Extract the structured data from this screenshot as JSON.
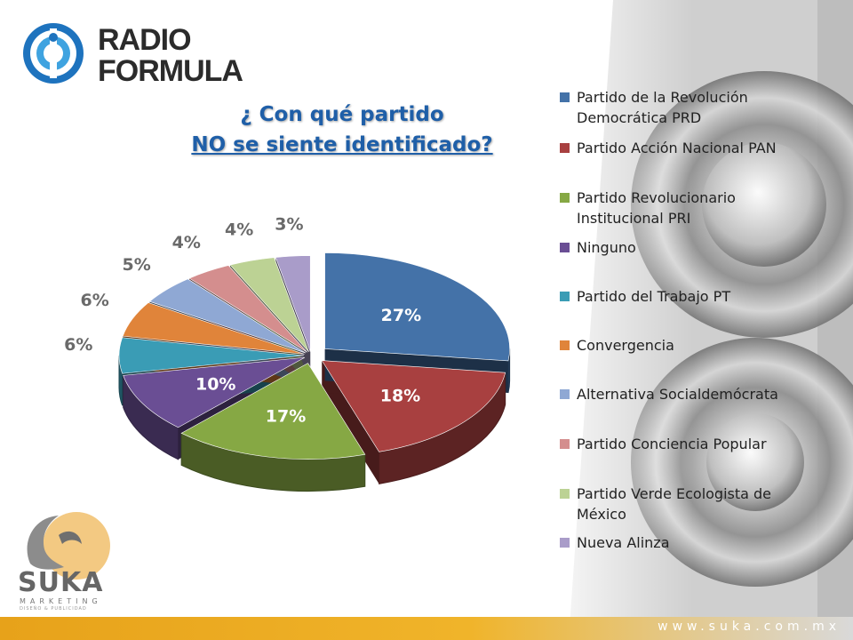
{
  "brand": {
    "logo_line1": "RADIO",
    "logo_line2": "FORMULA",
    "suka_name": "SUKA",
    "suka_sub": "MARKETING",
    "suka_tag": "DISEÑO & PUBLICIDAD",
    "footer_url": "www.suka.com.mx",
    "colors": {
      "footer": "#f0b42a",
      "title": "#1f5fa8"
    }
  },
  "chart_data": {
    "type": "pie",
    "title_lines": [
      "¿ Con qué partido",
      "NO se siente identificado?"
    ],
    "legend_position": "right",
    "categories": [
      "Partido de la Revolución Democrática PRD",
      "Partido Acción Nacional PAN",
      "Partido Revolucionario Institucional PRI",
      "Ninguno",
      "Partido del Trabajo PT",
      "Convergencia",
      "Alternativa Socialdemócrata",
      "Partido Conciencia Popular",
      "Partido Verde Ecologista de México",
      "Nueva Alinza"
    ],
    "legend_lines": [
      [
        "Partido de la Revolución",
        "Democrática PRD"
      ],
      [
        "Partido Acción Nacional PAN"
      ],
      [
        "Partido Revolucionario",
        "Institucional PRI"
      ],
      [
        "Ninguno"
      ],
      [
        "Partido del Trabajo PT"
      ],
      [
        "Convergencia"
      ],
      [
        "Alternativa Socialdemócrata"
      ],
      [
        "Partido Conciencia Popular"
      ],
      [
        "Partido Verde Ecologista de",
        "México"
      ],
      [
        "Nueva Alinza"
      ]
    ],
    "values": [
      27,
      18,
      17,
      10,
      6,
      6,
      5,
      4,
      4,
      3
    ],
    "labels": [
      "27%",
      "18%",
      "17%",
      "10%",
      "6%",
      "6%",
      "5%",
      "4%",
      "4%",
      "3%"
    ],
    "colors": [
      "#4472a8",
      "#a84040",
      "#86a844",
      "#6a4e94",
      "#3a9cb5",
      "#e0843a",
      "#8fa8d4",
      "#d48e8e",
      "#bcd294",
      "#a99cc9"
    ],
    "exploded": true
  }
}
